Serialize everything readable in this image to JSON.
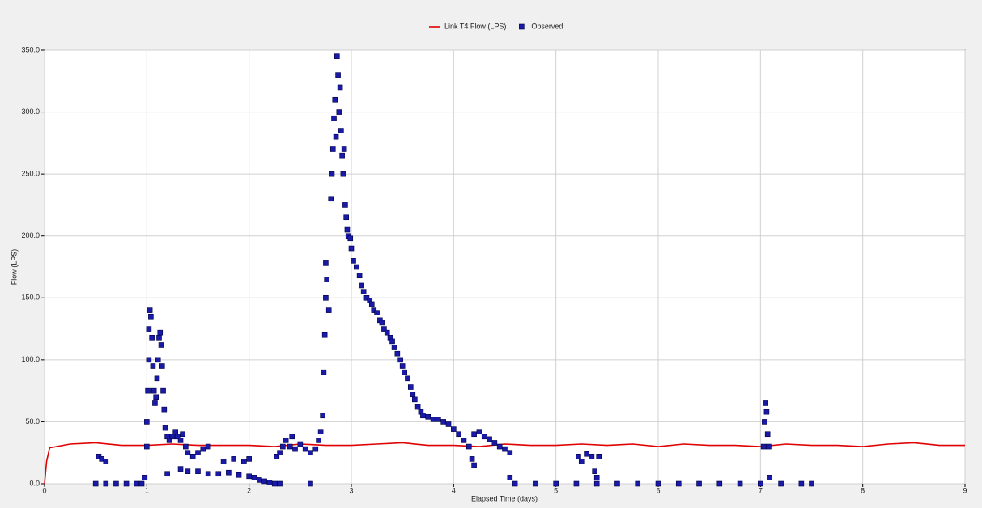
{
  "chart_data": {
    "type": "line",
    "x_label": "Elapsed Time (days)",
    "y_label": "Flow (LPS)",
    "xlim": [
      0,
      9
    ],
    "xticks": [
      0,
      1,
      2,
      3,
      4,
      5,
      6,
      7,
      8,
      9
    ],
    "ylim": [
      0,
      350
    ],
    "yticks": [
      {
        "value": 0,
        "label": "0.0"
      },
      {
        "value": 50,
        "label": "50.0"
      },
      {
        "value": 100,
        "label": "100.0"
      },
      {
        "value": 150,
        "label": "150.0"
      },
      {
        "value": 200,
        "label": "200.0"
      },
      {
        "value": 250,
        "label": "250.0"
      },
      {
        "value": 300,
        "label": "300.0"
      },
      {
        "value": 350,
        "label": "350.0"
      }
    ],
    "grid": true,
    "legend": "top",
    "series": [
      {
        "name": "Link T4 Flow (LPS)",
        "type": "line",
        "color": "#e00000",
        "x": [
          0,
          0.02,
          0.05,
          0.25,
          0.5,
          0.75,
          1,
          1.25,
          1.5,
          1.75,
          2,
          2.25,
          2.5,
          2.75,
          3,
          3.25,
          3.5,
          3.75,
          4,
          4.25,
          4.5,
          4.75,
          5,
          5.25,
          5.5,
          5.75,
          6,
          6.25,
          6.5,
          6.75,
          7,
          7.25,
          7.5,
          7.75,
          8,
          8.25,
          8.5,
          8.75,
          9
        ],
        "values": [
          0,
          18,
          29,
          32,
          33,
          31,
          31,
          32,
          31,
          31,
          31,
          30,
          32,
          31,
          31,
          32,
          33,
          31,
          31,
          30,
          32,
          31,
          31,
          32,
          31,
          32,
          30,
          32,
          31,
          31,
          30,
          32,
          31,
          31,
          30,
          32,
          33,
          31,
          31
        ]
      },
      {
        "name": "Observed",
        "type": "scatter",
        "color": "#1a1aa8",
        "x": [
          0.5,
          0.6,
          0.7,
          0.8,
          0.9,
          0.95,
          0.53,
          0.56,
          0.6,
          0.98,
          1.0,
          1.0,
          1.01,
          1.02,
          1.02,
          1.03,
          1.04,
          1.05,
          1.06,
          1.07,
          1.08,
          1.09,
          1.1,
          1.11,
          1.12,
          1.13,
          1.14,
          1.15,
          1.16,
          1.17,
          1.18,
          1.2,
          1.22,
          1.25,
          1.28,
          1.3,
          1.33,
          1.35,
          1.38,
          1.4,
          1.45,
          1.5,
          1.55,
          1.6,
          1.33,
          1.4,
          1.5,
          1.6,
          1.7,
          1.8,
          1.9,
          2.0,
          2.05,
          2.1,
          2.15,
          2.2,
          1.2,
          1.75,
          1.85,
          1.95,
          2.0,
          2.25,
          2.3,
          2.27,
          2.3,
          2.33,
          2.36,
          2.4,
          2.42,
          2.45,
          2.5,
          2.55,
          2.6,
          2.65,
          2.68,
          2.7,
          2.6,
          2.72,
          2.73,
          2.74,
          2.75,
          2.75,
          2.76,
          2.78,
          2.8,
          2.81,
          2.82,
          2.83,
          2.84,
          2.85,
          2.86,
          2.87,
          2.88,
          2.89,
          2.9,
          2.91,
          2.92,
          2.93,
          2.94,
          2.95,
          2.96,
          2.97,
          2.99,
          3.0,
          3.02,
          3.05,
          3.08,
          3.1,
          3.12,
          3.15,
          3.18,
          3.2,
          3.22,
          3.25,
          3.28,
          3.3,
          3.32,
          3.35,
          3.38,
          3.4,
          3.42,
          3.45,
          3.48,
          3.5,
          3.52,
          3.55,
          3.58,
          3.6,
          3.62,
          3.65,
          3.68,
          3.7,
          3.75,
          3.8,
          3.85,
          3.9,
          3.95,
          4.0,
          4.05,
          4.1,
          4.15,
          4.18,
          4.2,
          4.2,
          4.25,
          4.3,
          4.35,
          4.4,
          4.45,
          4.5,
          4.55,
          4.55,
          4.6,
          4.8,
          5.0,
          5.2,
          5.4,
          5.6,
          5.8,
          6.0,
          6.2,
          6.4,
          6.6,
          6.8,
          7.0,
          7.2,
          7.4,
          7.5,
          5.22,
          5.25,
          5.3,
          5.35,
          5.38,
          5.4,
          5.42,
          7.03,
          7.04,
          7.05,
          7.06,
          7.07,
          7.08,
          7.09
        ],
        "values": [
          0,
          0,
          0,
          0,
          0,
          0,
          22,
          20,
          18,
          5,
          30,
          50,
          75,
          100,
          125,
          140,
          135,
          118,
          95,
          75,
          65,
          70,
          85,
          100,
          118,
          122,
          112,
          95,
          75,
          60,
          45,
          38,
          35,
          38,
          42,
          38,
          35,
          40,
          30,
          25,
          22,
          25,
          28,
          30,
          12,
          10,
          10,
          8,
          8,
          9,
          7,
          6,
          5,
          3,
          2,
          1,
          8,
          18,
          20,
          18,
          20,
          0,
          0,
          22,
          25,
          30,
          35,
          30,
          38,
          28,
          32,
          28,
          25,
          28,
          35,
          42,
          0,
          55,
          90,
          120,
          150,
          178,
          165,
          140,
          230,
          250,
          270,
          295,
          310,
          280,
          345,
          330,
          300,
          320,
          285,
          265,
          250,
          270,
          225,
          215,
          205,
          200,
          198,
          190,
          180,
          175,
          168,
          160,
          155,
          150,
          148,
          145,
          140,
          138,
          132,
          130,
          125,
          122,
          118,
          115,
          110,
          105,
          100,
          95,
          90,
          85,
          78,
          72,
          68,
          62,
          58,
          55,
          54,
          52,
          52,
          50,
          48,
          44,
          40,
          35,
          30,
          20,
          15,
          40,
          42,
          38,
          36,
          33,
          30,
          28,
          25,
          5,
          0,
          0,
          0,
          0,
          0,
          0,
          0,
          0,
          0,
          0,
          0,
          0,
          0,
          0,
          0,
          0,
          22,
          18,
          24,
          22,
          10,
          5,
          22,
          30,
          50,
          65,
          58,
          40,
          30,
          5
        ]
      }
    ]
  }
}
